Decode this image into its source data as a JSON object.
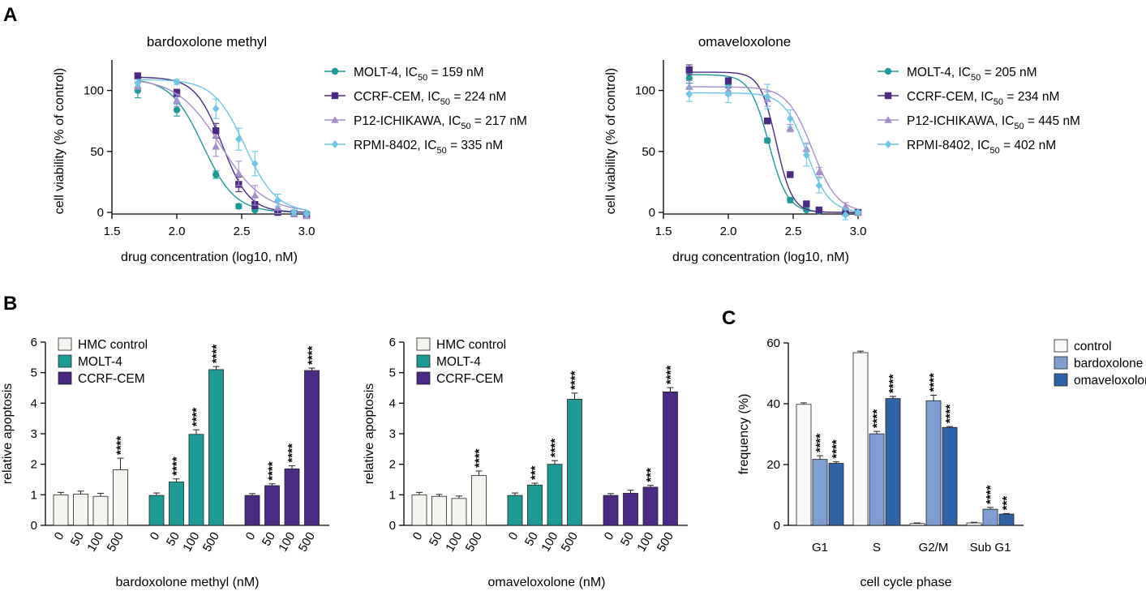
{
  "panel_letters": {
    "A": "A",
    "B": "B",
    "C": "C"
  },
  "colors": {
    "MOLT-4": "#1e9a96",
    "CCRF-CEM": "#4b2a86",
    "P12-ICHIKAWA": "#a58fc9",
    "RPMI-8402": "#6cc6e4",
    "HMC control": "#f5f4ee",
    "control": "#f8f8f8",
    "bardoxolone methyl": "#7f9fd3",
    "omaveloxolone": "#2e63a8"
  },
  "chart_data": [
    {
      "id": "A1",
      "type": "scatter",
      "title": "bardoxolone methyl",
      "xlabel": "drug concentration (log10, nM)",
      "ylabel": "cell viability (% of control)",
      "xlim": [
        1.5,
        3.0
      ],
      "ylim": [
        0,
        125
      ],
      "xticks": [
        "1.5",
        "2.0",
        "2.5",
        "3.0"
      ],
      "yticks": [
        "0",
        "50",
        "100"
      ],
      "grid": false,
      "legend_position": "right",
      "x": [
        1.699,
        2.0,
        2.301,
        2.477,
        2.602,
        2.778,
        2.903,
        3.0
      ],
      "series": [
        {
          "name": "MOLT-4",
          "legend_prefix": "MOLT-4, IC",
          "legend_suffix": " = 159 nM",
          "marker": "circle",
          "logIC50": 2.201,
          "top": 110,
          "hill": 3.5,
          "values": [
            100,
            84,
            31,
            5,
            2,
            0,
            -1,
            -1
          ],
          "errors": [
            6,
            5,
            3,
            2,
            1,
            1,
            1,
            1
          ]
        },
        {
          "name": "CCRF-CEM",
          "legend_prefix": "CCRF-CEM, IC",
          "legend_suffix": " = 224 nM",
          "marker": "square",
          "logIC50": 2.35,
          "top": 111,
          "hill": 4.2,
          "values": [
            112,
            98,
            67,
            23,
            6,
            0,
            -1,
            -2
          ],
          "errors": [
            2,
            3,
            6,
            6,
            3,
            1,
            1,
            1
          ]
        },
        {
          "name": "P12-ICHIKAWA",
          "legend_prefix": "P12-ICHIKAWA, IC",
          "legend_suffix": " = 217 nM",
          "marker": "triangle",
          "logIC50": 2.337,
          "top": 110,
          "hill": 2.6,
          "values": [
            104,
            92,
            54,
            32,
            14,
            4,
            -1,
            -3
          ],
          "errors": [
            3,
            5,
            8,
            10,
            8,
            5,
            2,
            2
          ]
        },
        {
          "name": "RPMI-8402",
          "legend_prefix": "RPMI-8402, IC",
          "legend_suffix": " = 335 nM",
          "marker": "diamond",
          "logIC50": 2.525,
          "top": 109,
          "hill": 3.6,
          "values": [
            106,
            107,
            85,
            60,
            40,
            10,
            0,
            -1
          ],
          "errors": [
            3,
            2,
            8,
            9,
            10,
            5,
            2,
            1
          ]
        }
      ],
      "ic_sub": "50"
    },
    {
      "id": "A2",
      "type": "scatter",
      "title": "omaveloxolone",
      "xlabel": "drug concentration (log10, nM)",
      "ylabel": "cell viability (% of control)",
      "xlim": [
        1.5,
        3.0
      ],
      "ylim": [
        0,
        125
      ],
      "xticks": [
        "1.5",
        "2.0",
        "2.5",
        "3.0"
      ],
      "yticks": [
        "0",
        "50",
        "100"
      ],
      "grid": false,
      "legend_position": "right",
      "x": [
        1.699,
        2.0,
        2.301,
        2.477,
        2.602,
        2.699,
        2.903,
        3.0
      ],
      "series": [
        {
          "name": "MOLT-4",
          "legend_prefix": "MOLT-4, IC",
          "legend_suffix": " = 205 nM",
          "marker": "circle",
          "logIC50": 2.312,
          "top": 113,
          "hill": 6,
          "values": [
            110,
            105,
            59,
            10,
            2,
            1,
            0,
            0
          ],
          "errors": [
            4,
            3,
            2,
            2,
            1,
            1,
            1,
            1
          ]
        },
        {
          "name": "CCRF-CEM",
          "legend_prefix": "CCRF-CEM, IC",
          "legend_suffix": " = 234 nM",
          "marker": "square",
          "logIC50": 2.369,
          "top": 115,
          "hill": 7,
          "values": [
            117,
            108,
            75,
            31,
            7,
            2,
            0,
            0
          ],
          "errors": [
            4,
            2,
            2,
            2,
            1,
            1,
            1,
            1
          ]
        },
        {
          "name": "P12-ICHIKAWA",
          "legend_prefix": "P12-ICHIKAWA, IC",
          "legend_suffix": " = 445 nM",
          "marker": "triangle",
          "logIC50": 2.648,
          "top": 103,
          "hill": 4.5,
          "values": [
            103,
            100,
            93,
            69,
            52,
            33,
            5,
            0
          ],
          "errors": [
            5,
            4,
            6,
            3,
            5,
            4,
            3,
            1
          ]
        },
        {
          "name": "RPMI-8402",
          "legend_prefix": "RPMI-8402, IC",
          "legend_suffix": " = 402 nM",
          "marker": "diamond",
          "logIC50": 2.604,
          "top": 98,
          "hill": 5,
          "values": [
            97,
            97,
            95,
            77,
            47,
            22,
            -2,
            0
          ],
          "errors": [
            6,
            7,
            10,
            7,
            9,
            6,
            4,
            1
          ]
        }
      ],
      "ic_sub": "50"
    },
    {
      "id": "B1",
      "type": "bar",
      "title": "",
      "xlabel": "bardoxolone methyl (nM)",
      "ylabel": "relative apoptosis",
      "ylim": [
        0,
        6
      ],
      "yticks": [
        "0",
        "1",
        "2",
        "3",
        "4",
        "5",
        "6"
      ],
      "categories": [
        "0",
        "50",
        "100",
        "500"
      ],
      "legend_position": "top-left",
      "series": [
        {
          "name": "HMC control",
          "values": [
            1.0,
            1.02,
            0.95,
            1.82
          ],
          "errors": [
            0.08,
            0.1,
            0.1,
            0.38
          ],
          "sig": [
            "",
            "",
            "",
            "****"
          ]
        },
        {
          "name": "MOLT-4",
          "values": [
            0.98,
            1.42,
            2.98,
            5.1
          ],
          "errors": [
            0.08,
            0.1,
            0.15,
            0.1
          ],
          "sig": [
            "",
            "****",
            "****",
            "****"
          ]
        },
        {
          "name": "CCRF-CEM",
          "values": [
            0.98,
            1.3,
            1.85,
            5.07
          ],
          "errors": [
            0.06,
            0.06,
            0.1,
            0.08
          ],
          "sig": [
            "",
            "****",
            "****",
            "****"
          ]
        }
      ]
    },
    {
      "id": "B2",
      "type": "bar",
      "title": "",
      "xlabel": "omaveloxolone (nM)",
      "ylabel": "relative apoptosis",
      "ylim": [
        0,
        6
      ],
      "yticks": [
        "0",
        "1",
        "2",
        "3",
        "4",
        "5",
        "6"
      ],
      "categories": [
        "0",
        "50",
        "100",
        "500"
      ],
      "legend_position": "top-left",
      "series": [
        {
          "name": "HMC control",
          "values": [
            1.0,
            0.95,
            0.88,
            1.63
          ],
          "errors": [
            0.08,
            0.06,
            0.08,
            0.15
          ],
          "sig": [
            "",
            "",
            "",
            "****"
          ]
        },
        {
          "name": "MOLT-4",
          "values": [
            0.98,
            1.32,
            2.0,
            4.13
          ],
          "errors": [
            0.08,
            0.06,
            0.12,
            0.2
          ],
          "sig": [
            "",
            "***",
            "****",
            "****"
          ]
        },
        {
          "name": "CCRF-CEM",
          "values": [
            0.98,
            1.05,
            1.25,
            4.37
          ],
          "errors": [
            0.06,
            0.1,
            0.06,
            0.14
          ],
          "sig": [
            "",
            "",
            "***",
            "****"
          ]
        }
      ]
    },
    {
      "id": "C",
      "type": "bar",
      "title": "",
      "xlabel": "cell cycle phase",
      "ylabel": "frequency (%)",
      "ylim": [
        0,
        60
      ],
      "yticks": [
        "0",
        "20",
        "40",
        "60"
      ],
      "categories": [
        "G1",
        "S",
        "G2/M",
        "Sub G1"
      ],
      "legend_position": "top-right",
      "series": [
        {
          "name": "control",
          "values": [
            39.8,
            56.8,
            0.6,
            0.8
          ],
          "errors": [
            0.5,
            0.5,
            0.2,
            0.2
          ],
          "sig": [
            "",
            "",
            "",
            ""
          ]
        },
        {
          "name": "bardoxolone methyl",
          "values": [
            21.7,
            30.1,
            41.0,
            5.3
          ],
          "errors": [
            1.2,
            0.8,
            1.8,
            0.6
          ],
          "sig": [
            "****",
            "****",
            "****",
            "****"
          ]
        },
        {
          "name": "omaveloxolone",
          "values": [
            20.4,
            41.7,
            32.2,
            3.7
          ],
          "errors": [
            0.5,
            0.7,
            0.3,
            0.2
          ],
          "sig": [
            "****",
            "****",
            "****",
            "***"
          ]
        }
      ]
    }
  ]
}
